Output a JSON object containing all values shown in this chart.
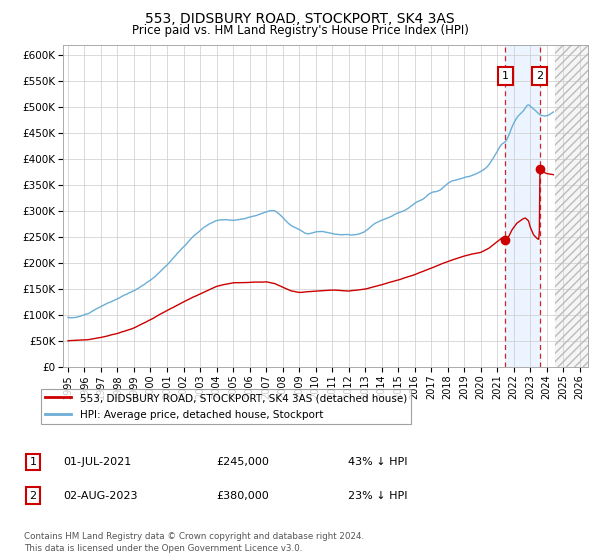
{
  "title": "553, DIDSBURY ROAD, STOCKPORT, SK4 3AS",
  "subtitle": "Price paid vs. HM Land Registry's House Price Index (HPI)",
  "ylim": [
    0,
    620000
  ],
  "yticks": [
    0,
    50000,
    100000,
    150000,
    200000,
    250000,
    300000,
    350000,
    400000,
    450000,
    500000,
    550000,
    600000
  ],
  "ytick_labels": [
    "£0",
    "£50K",
    "£100K",
    "£150K",
    "£200K",
    "£250K",
    "£300K",
    "£350K",
    "£400K",
    "£450K",
    "£500K",
    "£550K",
    "£600K"
  ],
  "xlim_start": 1994.7,
  "xlim_end": 2026.5,
  "xticks": [
    1995,
    1996,
    1997,
    1998,
    1999,
    2000,
    2001,
    2002,
    2003,
    2004,
    2005,
    2006,
    2007,
    2008,
    2009,
    2010,
    2011,
    2012,
    2013,
    2014,
    2015,
    2016,
    2017,
    2018,
    2019,
    2020,
    2021,
    2022,
    2023,
    2024,
    2025,
    2026
  ],
  "hpi_color": "#6baed6",
  "property_color": "#cc0000",
  "sale1_x": 2021.5,
  "sale1_y": 245000,
  "sale2_x": 2023.58,
  "sale2_y": 380000,
  "shade_start": 2021.5,
  "shade_end": 2023.58,
  "hatch_start": 2024.5,
  "legend_line1": "553, DIDSBURY ROAD, STOCKPORT, SK4 3AS (detached house)",
  "legend_line2": "HPI: Average price, detached house, Stockport",
  "sale1_label": "1",
  "sale1_date": "01-JUL-2021",
  "sale1_price": "£245,000",
  "sale1_hpi_text": "43% ↓ HPI",
  "sale2_label": "2",
  "sale2_date": "02-AUG-2023",
  "sale2_price": "£380,000",
  "sale2_hpi_text": "23% ↓ HPI",
  "footer": "Contains HM Land Registry data © Crown copyright and database right 2024.\nThis data is licensed under the Open Government Licence v3.0.",
  "bg_color": "#ffffff",
  "grid_color": "#cccccc"
}
